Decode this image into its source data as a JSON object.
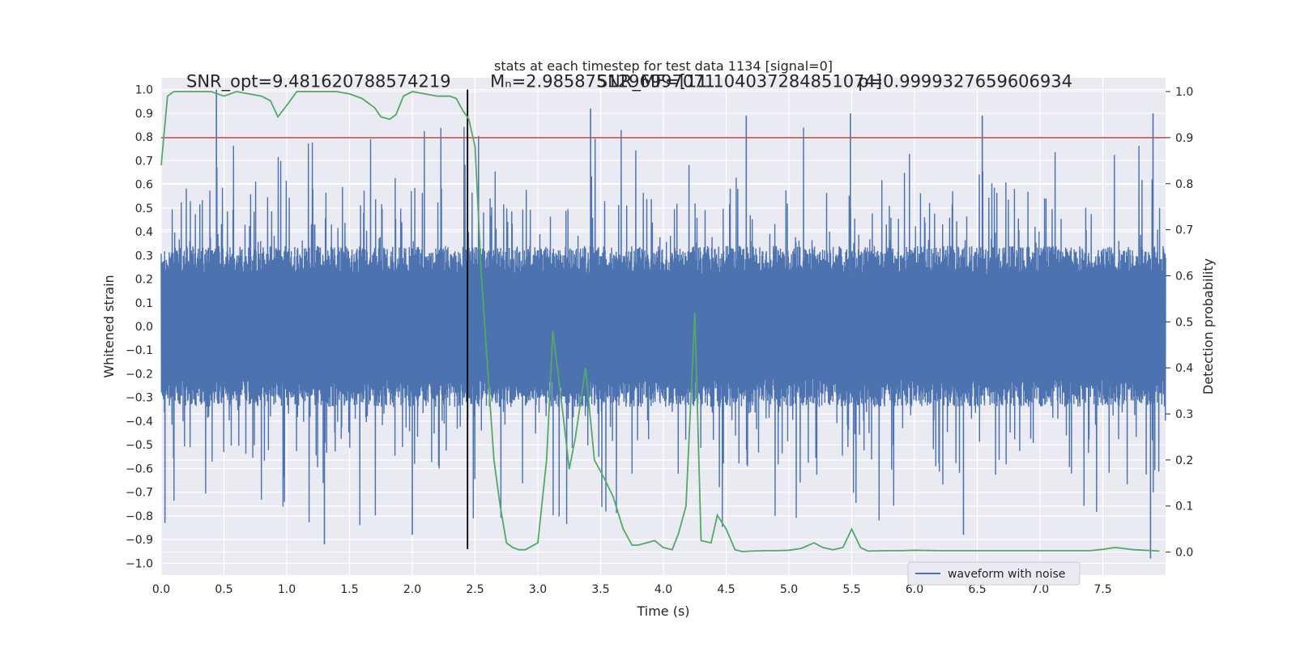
{
  "chart_data": {
    "type": "line",
    "title": "stats at each timestep for test data 1134 [signal=0]",
    "xlabel": "Time (s)",
    "ylabel": "Whitened strain",
    "ylabel_right": "Detection probability",
    "xlim": [
      0,
      8
    ],
    "ylim": [
      -1.05,
      1.05
    ],
    "ylim_right": [
      -0.05,
      1.03
    ],
    "x_ticks": [
      0.0,
      0.5,
      1.0,
      1.5,
      2.0,
      2.5,
      3.0,
      3.5,
      4.0,
      4.5,
      5.0,
      5.5,
      6.0,
      6.5,
      7.0,
      7.5
    ],
    "x_tick_labels": [
      "0.0",
      "0.5",
      "1.0",
      "1.5",
      "2.0",
      "2.5",
      "3.0",
      "3.5",
      "4.0",
      "4.5",
      "5.0",
      "5.5",
      "6.0",
      "6.5",
      "7.0",
      "7.5"
    ],
    "y_ticks": [
      1.0,
      0.9,
      0.8,
      0.7,
      0.6,
      0.5,
      0.4,
      0.3,
      0.2,
      0.1,
      0.0,
      -0.1,
      -0.2,
      -0.3,
      -0.4,
      -0.5,
      -0.6,
      -0.7,
      -0.8,
      -0.9,
      -1.0
    ],
    "y_tick_labels": [
      "1.0",
      "0.9",
      "0.8",
      "0.7",
      "0.6",
      "0.5",
      "0.4",
      "0.3",
      "0.2",
      "0.1",
      "0.0",
      "−0.1",
      "−0.2",
      "−0.3",
      "−0.4",
      "−0.5",
      "−0.6",
      "−0.7",
      "−0.8",
      "−0.9",
      "−1.0"
    ],
    "y_right_ticks": [
      1.0,
      0.9,
      0.8,
      0.7,
      0.6,
      0.5,
      0.4,
      0.3,
      0.2,
      0.1,
      0.0
    ],
    "y_right_tick_labels": [
      "1.0",
      "0.9",
      "0.8",
      "0.7",
      "0.6",
      "0.5",
      "0.4",
      "0.3",
      "0.2",
      "0.1",
      "0.0"
    ],
    "grid": true,
    "legend_position": "lower-right",
    "series": [
      {
        "name": "waveform with noise",
        "axis": "left",
        "color": "#4c72b0",
        "style": "dense noise, amplitude approx ±0.25 core with spikes to ±1.0",
        "peaks": [
          {
            "x": 0.44,
            "y": 1.0
          },
          {
            "x": 3.42,
            "y": 0.92
          },
          {
            "x": 4.66,
            "y": 0.89
          },
          {
            "x": 5.49,
            "y": 0.9
          },
          {
            "x": 6.54,
            "y": 0.89
          },
          {
            "x": 7.9,
            "y": 0.9
          }
        ],
        "troughs": [
          {
            "x": 0.03,
            "y": -0.83
          },
          {
            "x": 1.3,
            "y": -0.92
          },
          {
            "x": 2.0,
            "y": -0.88
          },
          {
            "x": 6.39,
            "y": -0.88
          },
          {
            "x": 7.88,
            "y": -0.98
          }
        ]
      },
      {
        "axis": "right",
        "color": "#55a868",
        "x": [
          0.0,
          0.05,
          0.1,
          0.2,
          0.3,
          0.4,
          0.5,
          0.6,
          0.7,
          0.8,
          0.87,
          0.93,
          1.0,
          1.08,
          1.2,
          1.3,
          1.4,
          1.5,
          1.6,
          1.7,
          1.75,
          1.82,
          1.87,
          1.93,
          2.0,
          2.1,
          2.2,
          2.3,
          2.35,
          2.4,
          2.45,
          2.5,
          2.55,
          2.6,
          2.65,
          2.7,
          2.75,
          2.8,
          2.85,
          2.9,
          3.0,
          3.07,
          3.12,
          3.2,
          3.25,
          3.3,
          3.38,
          3.45,
          3.53,
          3.6,
          3.68,
          3.75,
          3.8,
          3.93,
          4.0,
          4.07,
          4.12,
          4.18,
          4.25,
          4.3,
          4.38,
          4.43,
          4.5,
          4.57,
          4.63,
          4.7,
          4.8,
          4.9,
          5.0,
          5.1,
          5.2,
          5.27,
          5.35,
          5.43,
          5.5,
          5.57,
          5.63,
          5.75,
          5.9,
          6.0,
          6.2,
          6.4,
          6.6,
          6.8,
          7.0,
          7.2,
          7.4,
          7.5,
          7.6,
          7.75,
          7.9,
          7.95
        ],
        "y": [
          0.84,
          0.99,
          1.0,
          1.0,
          1.0,
          1.0,
          0.99,
          1.0,
          0.995,
          0.99,
          0.98,
          0.945,
          0.97,
          1.0,
          1.0,
          1.0,
          1.0,
          0.995,
          0.985,
          0.965,
          0.945,
          0.94,
          0.95,
          0.99,
          1.0,
          0.995,
          0.99,
          0.99,
          0.985,
          0.96,
          0.94,
          0.88,
          0.6,
          0.4,
          0.2,
          0.1,
          0.02,
          0.01,
          0.005,
          0.005,
          0.02,
          0.2,
          0.48,
          0.3,
          0.18,
          0.25,
          0.4,
          0.2,
          0.16,
          0.12,
          0.05,
          0.015,
          0.015,
          0.025,
          0.01,
          0.005,
          0.04,
          0.1,
          0.52,
          0.025,
          0.02,
          0.08,
          0.05,
          0.005,
          0.001,
          0.002,
          0.003,
          0.003,
          0.004,
          0.008,
          0.02,
          0.01,
          0.005,
          0.01,
          0.05,
          0.01,
          0.002,
          0.003,
          0.003,
          0.004,
          0.003,
          0.003,
          0.003,
          0.003,
          0.003,
          0.003,
          0.003,
          0.006,
          0.01,
          0.005,
          0.003,
          0.002
        ]
      }
    ],
    "hlines": [
      {
        "axis": "right",
        "y": 0.9,
        "color": "#c44e52"
      }
    ],
    "vlines": [
      {
        "x": 2.44,
        "ymin": -0.94,
        "ymax": 1.0,
        "color": "#000000"
      }
    ],
    "annotations": [
      {
        "text": "SNR_opt=9.481620788574219",
        "x": 0.2,
        "y": 1.0
      },
      {
        "text": "Mₙ=2.9858751296997071",
        "x": 2.62,
        "y": 1.0
      },
      {
        "text": "SNR_MF=[11.104037284851074]",
        "x": 3.47,
        "y": 1.0
      },
      {
        "text": "p=0.9999327659606934",
        "x": 5.55,
        "y": 1.0
      }
    ]
  }
}
